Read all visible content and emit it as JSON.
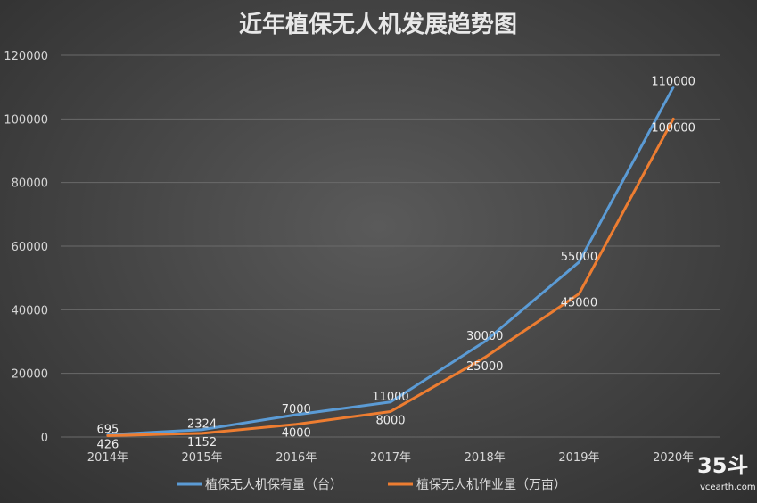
{
  "chart_data": {
    "type": "line",
    "title": "近年植保无人机发展趋势图",
    "categories": [
      "2014年",
      "2015年",
      "2016年",
      "2017年",
      "2018年",
      "2019年",
      "2020年"
    ],
    "ylim": [
      0,
      120000
    ],
    "yticks": [
      0,
      20000,
      40000,
      60000,
      80000,
      100000,
      120000
    ],
    "grid": true,
    "legend_position": "bottom",
    "series": [
      {
        "name": "植保无人机保有量（台）",
        "color": "#5b9bd5",
        "values": [
          695,
          2324,
          7000,
          11000,
          30000,
          55000,
          110000
        ],
        "labels": [
          "695",
          "2324",
          "7000",
          "11000",
          "30000",
          "55000",
          "110000"
        ]
      },
      {
        "name": "植保无人机作业量（万亩）",
        "color": "#ed7d31",
        "values": [
          426,
          1152,
          4000,
          8000,
          25000,
          45000,
          100000
        ],
        "labels": [
          "426",
          "1152",
          "4000",
          "8000",
          "25000",
          "45000",
          "100000"
        ]
      }
    ]
  },
  "watermark": {
    "logo": "35斗",
    "url": "vcearth.com"
  }
}
